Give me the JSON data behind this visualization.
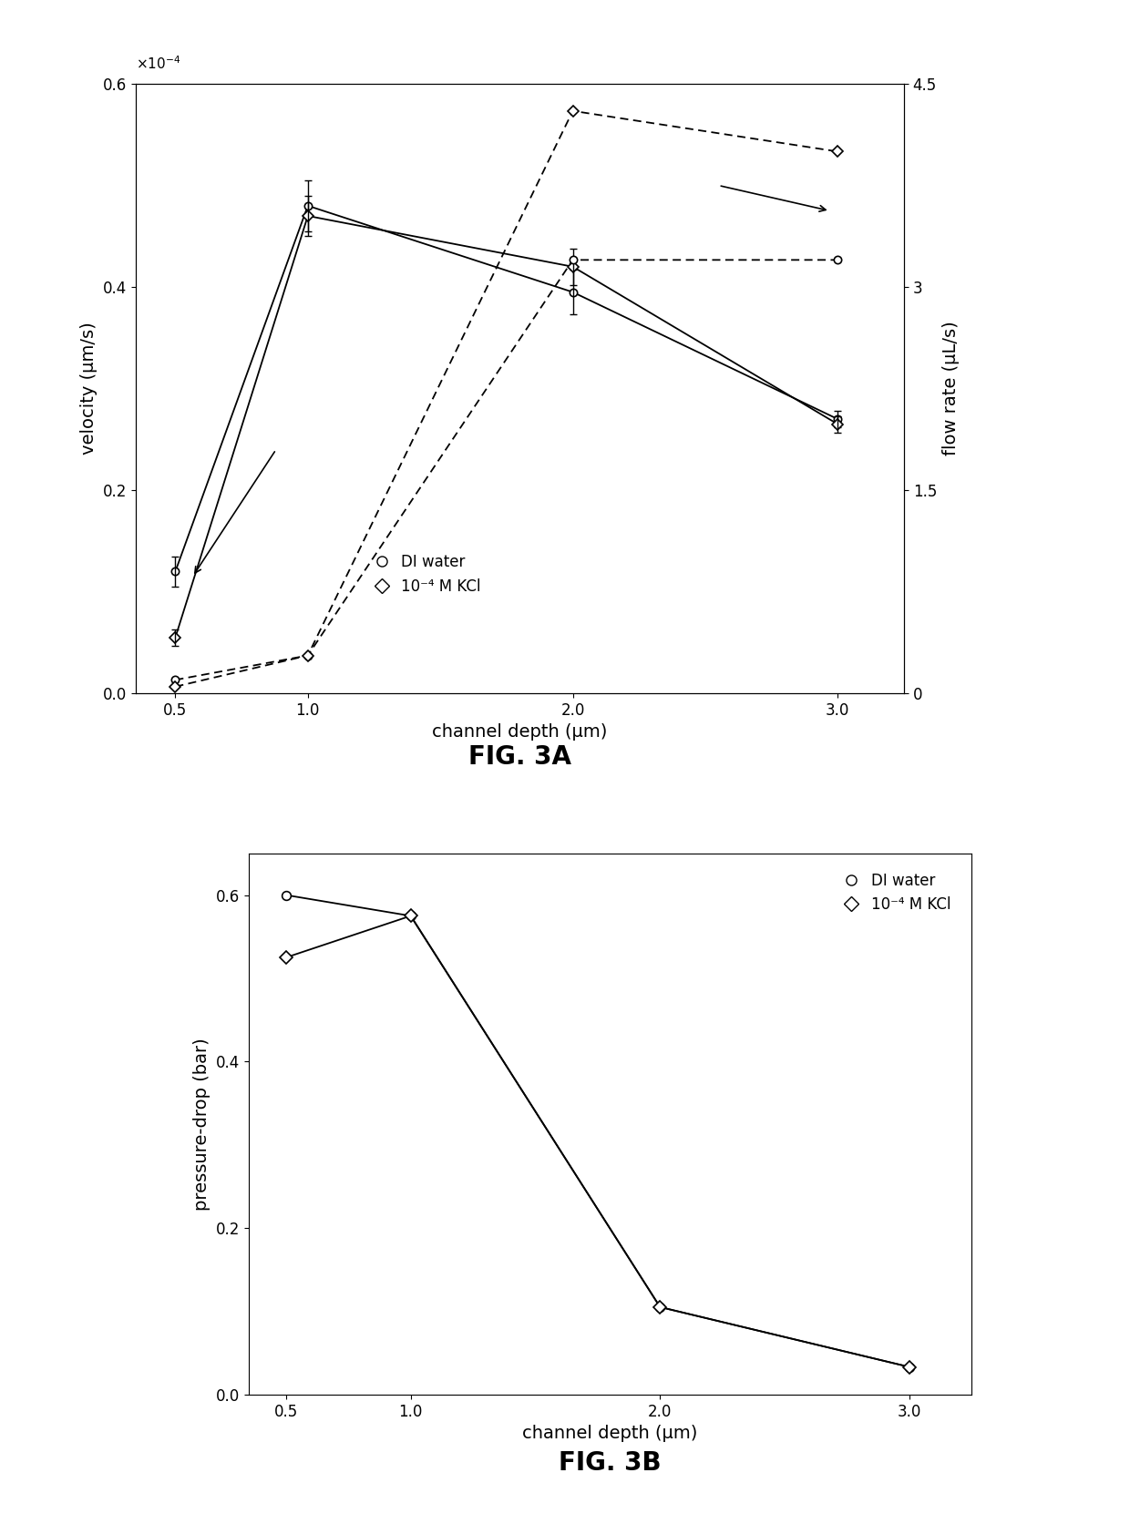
{
  "fig3a": {
    "x": [
      0.5,
      1,
      2,
      3
    ],
    "velocity_DI": [
      0.12,
      0.48,
      0.395,
      0.27
    ],
    "velocity_DI_err": [
      0.015,
      0.025,
      0.022,
      0.008
    ],
    "velocity_KCl": [
      0.055,
      0.47,
      0.42,
      0.265
    ],
    "velocity_KCl_err": [
      0.008,
      0.02,
      0.018,
      0.008
    ],
    "flowrate_DI": [
      1e-05,
      2.8e-05,
      0.00032,
      0.00032
    ],
    "flowrate_KCl": [
      5e-06,
      2.8e-05,
      0.00043,
      0.0004
    ],
    "ylabel_left": "velocity (μm/s)",
    "ylabel_right": "flow rate (μL/s)",
    "xlabel": "channel depth (μm)",
    "ylim_left": [
      0,
      0.6
    ],
    "ylim_right": [
      0.0,
      0.00045
    ],
    "yticks_left": [
      0,
      0.2,
      0.4,
      0.6
    ],
    "yticks_right": [
      0.0,
      0.00015,
      0.0003,
      0.00045
    ],
    "ytick_labels_right": [
      "0",
      "1.5",
      "3",
      "4.5"
    ],
    "xticks": [
      0.5,
      1,
      2,
      3
    ],
    "xlim": [
      0.35,
      3.25
    ],
    "label_DI": "DI water",
    "label_KCl": "10⁻⁴ M KCl",
    "title": "FIG. 3A"
  },
  "fig3b": {
    "x": [
      0.5,
      1,
      2,
      3
    ],
    "pressure_DI": [
      0.6,
      0.575,
      0.105,
      0.033
    ],
    "pressure_KCl": [
      0.525,
      0.575,
      0.105,
      0.033
    ],
    "ylabel": "pressure-drop (bar)",
    "xlabel": "channel depth (μm)",
    "ylim": [
      0,
      0.65
    ],
    "yticks": [
      0,
      0.2,
      0.4,
      0.6
    ],
    "xticks": [
      0.5,
      1,
      2,
      3
    ],
    "xlim": [
      0.35,
      3.25
    ],
    "label_DI": "DI water",
    "label_KCl": "10⁻⁴ M KCl",
    "title": "FIG. 3B"
  },
  "bg_color": "#ffffff"
}
